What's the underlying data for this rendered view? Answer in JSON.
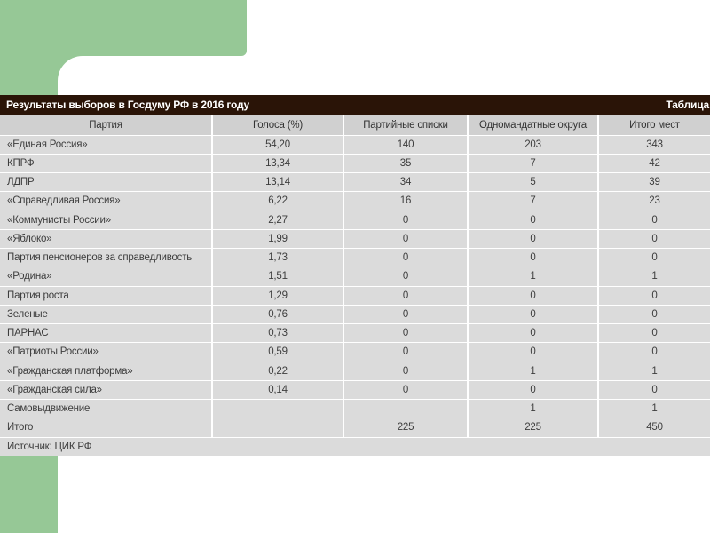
{
  "colors": {
    "accent_green": "#96c896",
    "table_header_bar": "#2a1407",
    "row_gray": "#dbdbdb",
    "column_header_gray": "#d0d0d0"
  },
  "chart_data": {
    "type": "table",
    "title": "Результаты выборов в Госдуму РФ в 2016 году",
    "corner_label": "Таблица",
    "columns": [
      "Партия",
      "Голоса (%)",
      "Партийные списки",
      "Одномандатные округа",
      "Итого мест"
    ],
    "rows": [
      [
        "«Единая Россия»",
        "54,20",
        "140",
        "203",
        "343"
      ],
      [
        "КПРФ",
        "13,34",
        "35",
        "7",
        "42"
      ],
      [
        "ЛДПР",
        "13,14",
        "34",
        "5",
        "39"
      ],
      [
        "«Справедливая Россия»",
        "6,22",
        "16",
        "7",
        "23"
      ],
      [
        "«Коммунисты России»",
        "2,27",
        "0",
        "0",
        "0"
      ],
      [
        "«Яблоко»",
        "1,99",
        "0",
        "0",
        "0"
      ],
      [
        "Партия пенсионеров за справедливость",
        "1,73",
        "0",
        "0",
        "0"
      ],
      [
        "«Родина»",
        "1,51",
        "0",
        "1",
        "1"
      ],
      [
        "Партия роста",
        "1,29",
        "0",
        "0",
        "0"
      ],
      [
        "Зеленые",
        "0,76",
        "0",
        "0",
        "0"
      ],
      [
        "ПАРНАС",
        "0,73",
        "0",
        "0",
        "0"
      ],
      [
        "«Патриоты России»",
        "0,59",
        "0",
        "0",
        "0"
      ],
      [
        "«Гражданская платформа»",
        "0,22",
        "0",
        "1",
        "1"
      ],
      [
        "«Гражданская сила»",
        "0,14",
        "0",
        "0",
        "0"
      ],
      [
        "Самовыдвижение",
        "",
        "",
        "1",
        "1"
      ],
      [
        "Итого",
        "",
        "225",
        "225",
        "450"
      ]
    ],
    "source": "Источник: ЦИК РФ"
  }
}
